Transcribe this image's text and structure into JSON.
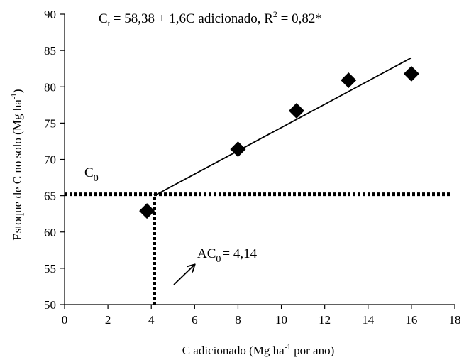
{
  "chart_data": {
    "type": "scatter",
    "title": "",
    "equation": {
      "prefix": "C",
      "prefix_sub": "t",
      "middle": " = 58,38 + 1,6C adicionado, R",
      "r_sup": "2",
      "suffix": " = 0,82*"
    },
    "xlabel": {
      "prefix": "C adicionado (Mg ha",
      "sup": "-1",
      "suffix": " por ano)"
    },
    "ylabel": {
      "prefix": "Estoque de C no solo (Mg ha",
      "sup": "-1",
      "suffix": ")"
    },
    "xlim": [
      0,
      18
    ],
    "ylim": [
      50,
      90
    ],
    "xticks": [
      "0",
      "2",
      "4",
      "6",
      "8",
      "10",
      "12",
      "14",
      "16",
      "18"
    ],
    "yticks": [
      "50",
      "55",
      "60",
      "65",
      "70",
      "75",
      "80",
      "85",
      "90"
    ],
    "grid": false,
    "series": [
      {
        "marker": "diamond",
        "x": [
          3.8,
          8.0,
          10.7,
          13.1,
          16.0
        ],
        "y": [
          62.9,
          71.4,
          76.7,
          80.9,
          81.8
        ]
      }
    ],
    "fit_line": {
      "x": [
        4.14,
        16.0
      ],
      "y": [
        65.0,
        84.0
      ]
    },
    "c0_line": {
      "y": 65.2,
      "x_start": 0,
      "x_end": 17.8,
      "label": "C",
      "label_sub": "0"
    },
    "ac0_line": {
      "x": 4.14,
      "y_start": 50,
      "y_end": 65.2
    },
    "ac0_annotation": {
      "prefix": "AC",
      "sub": "0",
      "suffix": "= 4,14"
    }
  }
}
